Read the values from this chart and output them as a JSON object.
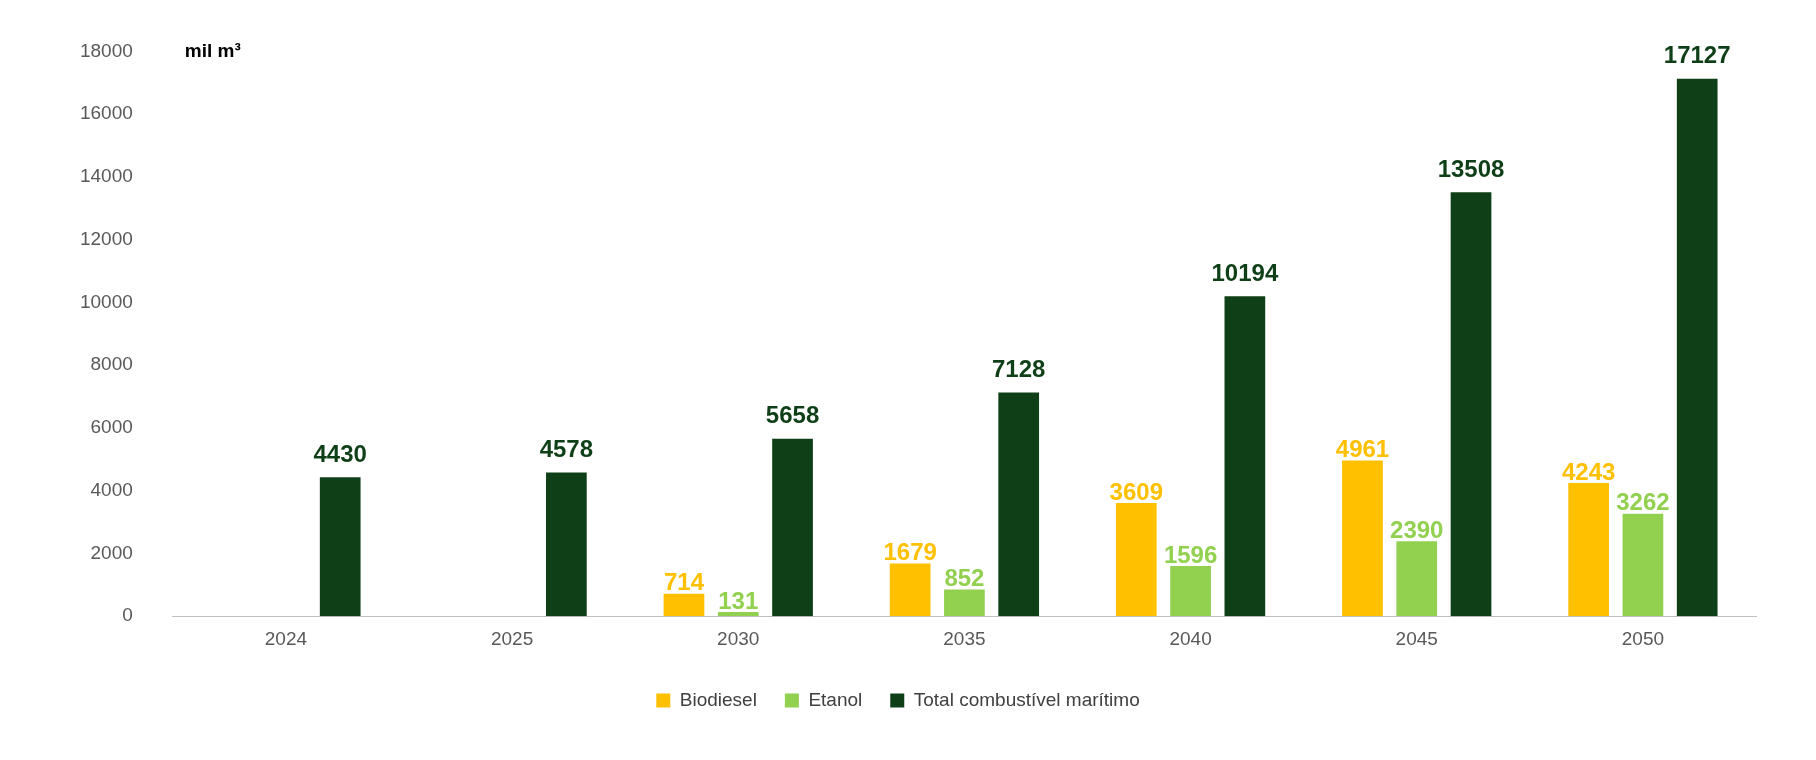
{
  "chart_data": {
    "type": "bar",
    "ylabel": "mil m³",
    "categories": [
      "2024",
      "2025",
      "2030",
      "2035",
      "2040",
      "2045",
      "2050"
    ],
    "series": [
      {
        "name": "Biodiesel",
        "color": "#ffc000",
        "values": [
          null,
          null,
          714,
          1679,
          3609,
          4961,
          4243
        ]
      },
      {
        "name": "Etanol",
        "color": "#92d050",
        "values": [
          null,
          null,
          131,
          852,
          1596,
          2390,
          3262
        ]
      },
      {
        "name": "Total combustível marítimo",
        "color": "#0f3f17",
        "values": [
          4430,
          4578,
          5658,
          7128,
          10194,
          13508,
          17127
        ]
      }
    ],
    "ylim": [
      0,
      18000
    ],
    "yticks": [
      0,
      2000,
      4000,
      6000,
      8000,
      10000,
      12000,
      14000,
      16000,
      18000
    ],
    "grid": false,
    "legend": "bottom",
    "data_labels": true
  }
}
